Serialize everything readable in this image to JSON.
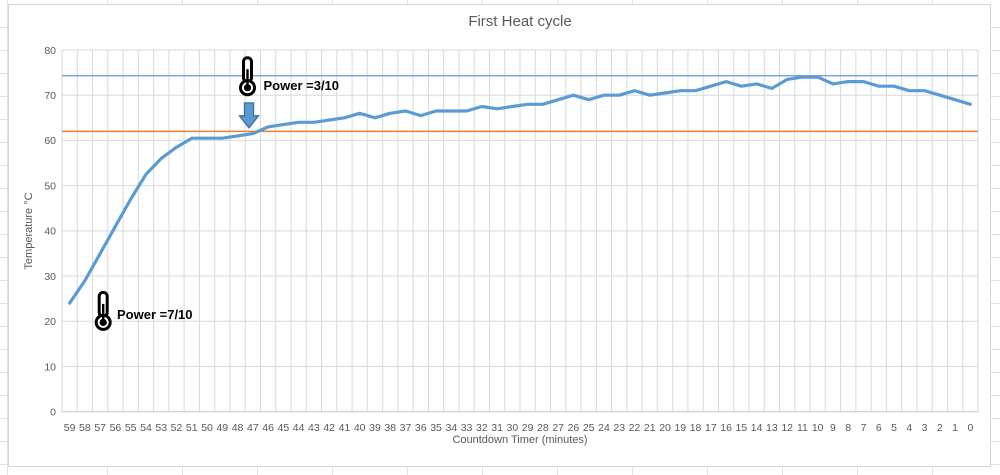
{
  "chart": {
    "title": "First Heat cycle",
    "x_axis_title": "Countdown Timer (minutes)",
    "y_axis_title": "Temperature °C"
  },
  "colors": {
    "series_blue": "#5B9BD5",
    "upper_reference_blue": "#5B9BD5",
    "lower_reference_orange": "#ED7D31",
    "gridline": "#D9D9D9",
    "axis_line": "#C6C6C6",
    "axis_text": "#595959",
    "annotation_text": "#000000",
    "arrow_fill": "#5B9BD5",
    "arrow_border": "#41719C",
    "thermometer": "#000000"
  },
  "chart_data": {
    "type": "line",
    "title": "First Heat cycle",
    "xlabel": "Countdown Timer (minutes)",
    "ylabel": "Temperature °C",
    "ylim": [
      0,
      80
    ],
    "y_ticks": [
      0,
      10,
      20,
      30,
      40,
      50,
      60,
      70,
      80
    ],
    "grid": true,
    "legend": "none",
    "categories": [
      59,
      58,
      57,
      56,
      55,
      54,
      53,
      52,
      51,
      50,
      49,
      48,
      47,
      46,
      45,
      44,
      43,
      42,
      41,
      40,
      39,
      38,
      37,
      36,
      35,
      34,
      33,
      32,
      31,
      30,
      29,
      28,
      27,
      26,
      25,
      24,
      23,
      22,
      21,
      20,
      19,
      18,
      17,
      16,
      15,
      14,
      13,
      12,
      11,
      10,
      9,
      8,
      7,
      6,
      5,
      4,
      3,
      2,
      1,
      0
    ],
    "series": [
      {
        "name": "Temperature",
        "color": "#5B9BD5",
        "values": [
          24,
          29,
          35,
          41,
          47,
          52.5,
          56,
          58.5,
          60.5,
          60.5,
          60.5,
          61,
          61.5,
          63,
          63.5,
          64,
          64,
          64.5,
          65,
          66,
          65,
          66,
          66.5,
          65.5,
          66.5,
          66.5,
          66.5,
          67.5,
          67,
          67.5,
          68,
          68,
          69,
          70,
          69,
          70,
          70,
          71,
          70,
          70.5,
          71,
          71,
          72,
          73,
          72,
          72.5,
          71.5,
          73.5,
          74,
          74,
          72.5,
          73,
          73,
          72,
          72,
          71,
          71,
          70,
          69,
          68
        ]
      }
    ],
    "reference_lines": [
      {
        "value": 74.3,
        "color": "#5B9BD5",
        "width": 1.2
      },
      {
        "value": 62,
        "color": "#ED7D31",
        "width": 1.4
      }
    ],
    "annotations": [
      {
        "text": "Power =7/10",
        "icon": "thermometer-icon",
        "minute": 56.8,
        "temp": 22.3,
        "text_minute": 55.9,
        "text_temp": 21.5
      },
      {
        "text": "Power =3/10",
        "icon": "thermometer-icon",
        "minute": 47.35,
        "temp": 74.2,
        "text_minute": 46.3,
        "text_temp": 72.1,
        "arrow": {
          "minute": 47.25,
          "temp_top": 68.3,
          "temp_tip": 62.8
        }
      }
    ]
  }
}
